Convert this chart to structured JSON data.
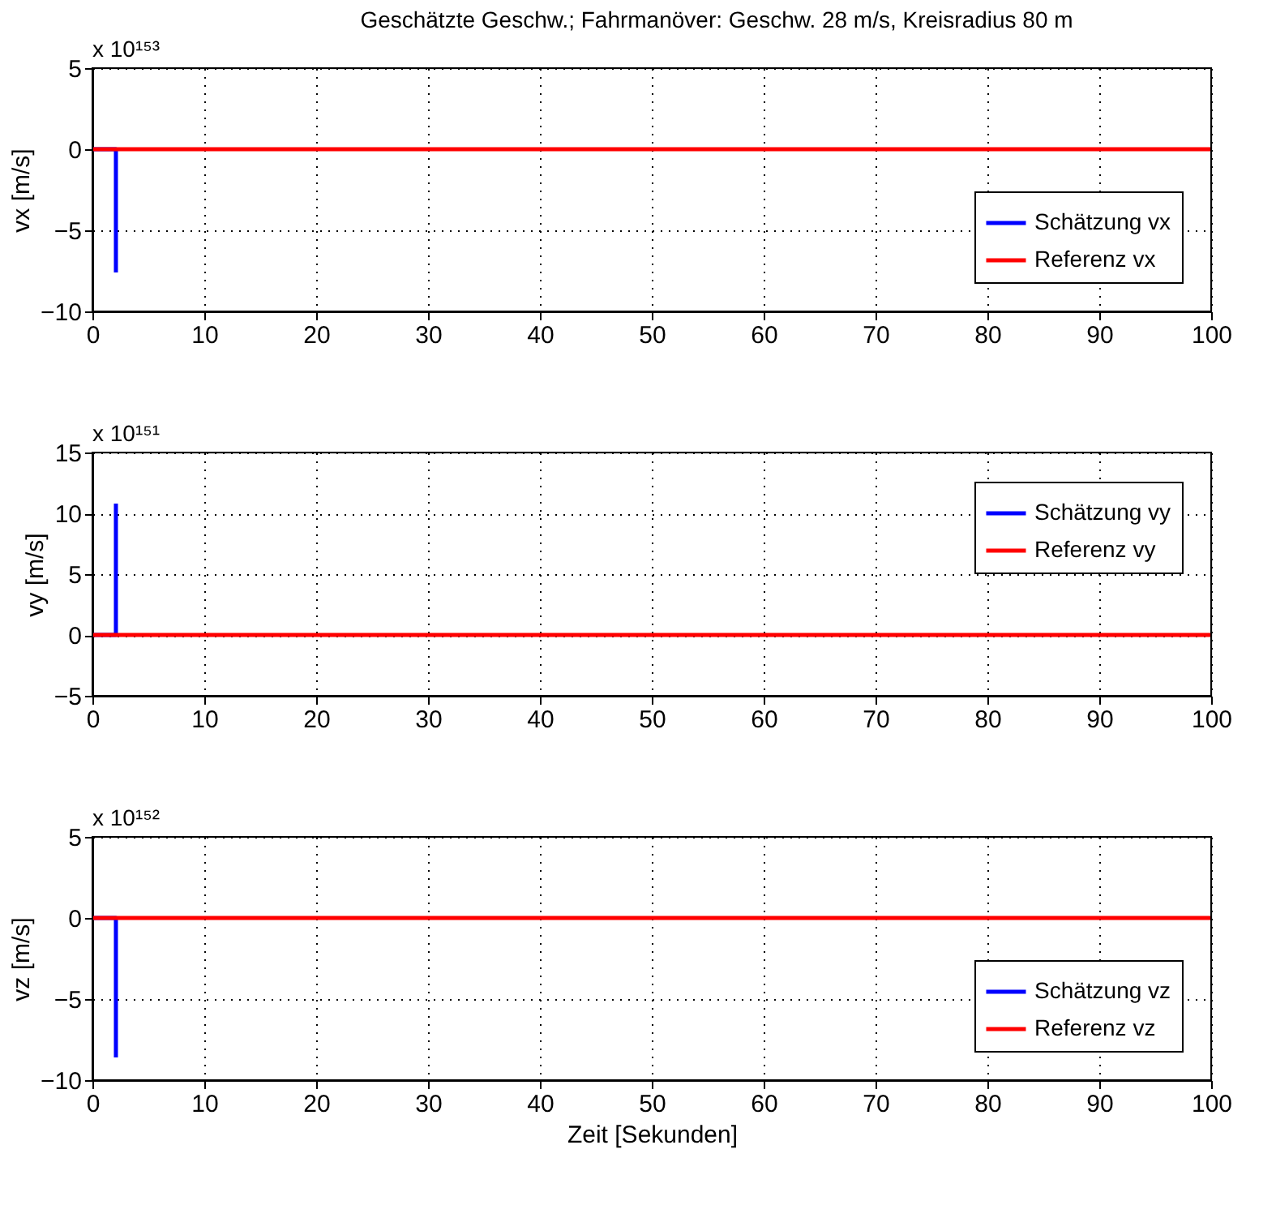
{
  "chart_data": [
    {
      "type": "line",
      "title": "Geschätzte Geschw.; Fahrmanöver: Geschw. 28 m/s, Kreisradius 80 m",
      "ylabel": "vx [m/s]",
      "annotations": [
        "x 10¹⁵³"
      ],
      "xlim": [
        0,
        100
      ],
      "xticks": [
        0,
        10,
        20,
        30,
        40,
        50,
        60,
        70,
        80,
        90,
        100
      ],
      "ylim": [
        -10,
        5
      ],
      "yticks": [
        -10,
        -5,
        0,
        5
      ],
      "grid": true,
      "legend": "bottom right",
      "line_style": "solid",
      "marker": "none",
      "series": [
        {
          "name": "Schätzung vx",
          "color": "#0000ff",
          "x": [
            0,
            2.1,
            2.1
          ],
          "values": [
            0,
            0,
            -7.6
          ]
        },
        {
          "name": "Referenz vx",
          "color": "#ff0000",
          "x": [
            0,
            100
          ],
          "values": [
            0,
            0
          ]
        }
      ]
    },
    {
      "type": "line",
      "ylabel": "vy [m/s]",
      "annotations": [
        "x 10¹⁵¹"
      ],
      "xlim": [
        0,
        100
      ],
      "xticks": [
        0,
        10,
        20,
        30,
        40,
        50,
        60,
        70,
        80,
        90,
        100
      ],
      "ylim": [
        -5,
        15
      ],
      "yticks": [
        -5,
        0,
        5,
        10,
        15
      ],
      "grid": true,
      "legend": "top right",
      "line_style": "solid",
      "marker": "none",
      "series": [
        {
          "name": "Schätzung vy",
          "color": "#0000ff",
          "x": [
            0,
            2.1,
            2.1
          ],
          "values": [
            0,
            0,
            10.8
          ]
        },
        {
          "name": "Referenz vy",
          "color": "#ff0000",
          "x": [
            0,
            100
          ],
          "values": [
            0,
            0
          ]
        }
      ]
    },
    {
      "type": "line",
      "xlabel": "Zeit [Sekunden]",
      "ylabel": "vz [m/s]",
      "annotations": [
        "x 10¹⁵²"
      ],
      "xlim": [
        0,
        100
      ],
      "xticks": [
        0,
        10,
        20,
        30,
        40,
        50,
        60,
        70,
        80,
        90,
        100
      ],
      "ylim": [
        -10,
        5
      ],
      "yticks": [
        -10,
        -5,
        0,
        5
      ],
      "grid": true,
      "legend": "bottom right",
      "line_style": "solid",
      "marker": "none",
      "series": [
        {
          "name": "Schätzung vz",
          "color": "#0000ff",
          "x": [
            0,
            2.1,
            2.1
          ],
          "values": [
            0,
            0,
            -8.6
          ]
        },
        {
          "name": "Referenz vz",
          "color": "#ff0000",
          "x": [
            0,
            100
          ],
          "values": [
            0,
            0
          ]
        }
      ]
    }
  ]
}
